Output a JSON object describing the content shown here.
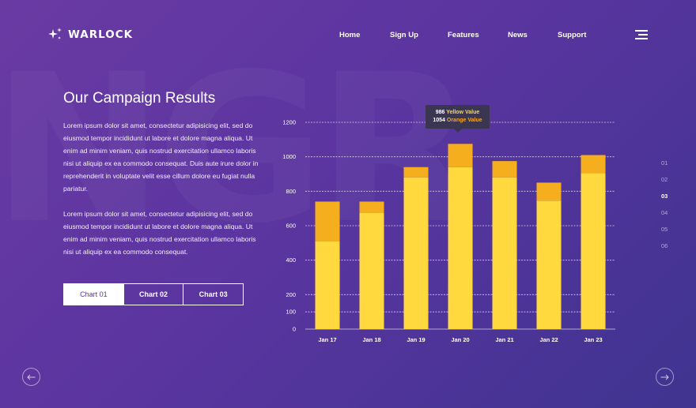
{
  "brand": {
    "name": "WARLOCK",
    "icon": "sparkles-icon"
  },
  "nav": {
    "items": [
      {
        "label": "Home"
      },
      {
        "label": "Sign Up"
      },
      {
        "label": "Features"
      },
      {
        "label": "News"
      },
      {
        "label": "Support"
      }
    ],
    "menu_icon": "hamburger-icon"
  },
  "content": {
    "title": "Our Campaign Results",
    "paragraphs": [
      "Lorem ipsum dolor sit amet, consectetur adipisicing elit, sed do eiusmod tempor incididunt ut labore et dolore magna aliqua. Ut enim ad minim veniam, quis nostrud exercitation ullamco laboris nisi ut aliquip ex ea commodo consequat. Duis aute irure dolor in reprehenderit in voluptate velit esse cillum dolore eu fugiat nulla pariatur.",
      "Lorem ipsum dolor sit amet, consectetur adipisicing elit, sed do eiusmod tempor incididunt ut labore et dolore magna aliqua. Ut enim ad minim veniam, quis nostrud exercitation ullamco laboris nisi ut aliquip ex ea commodo consequat."
    ],
    "tabs": [
      {
        "label": "Chart 01",
        "active": true
      },
      {
        "label": "Chart 02",
        "active": false
      },
      {
        "label": "Chart 03",
        "active": false
      }
    ]
  },
  "tooltip": {
    "yellow_value": "986",
    "yellow_label": "Yellow Value",
    "orange_value": "1054",
    "orange_label": "Orange Value"
  },
  "pager": {
    "items": [
      "01",
      "02",
      "03",
      "04",
      "05",
      "06"
    ],
    "active_index": 2
  },
  "colors": {
    "yellow": "#ffd93d",
    "orange": "#f5ae1e",
    "accent": "#5b35a0"
  },
  "controls": {
    "prev_icon": "arrow-left-icon",
    "next_icon": "arrow-right-icon"
  },
  "chart_data": {
    "type": "bar",
    "stacked": true,
    "categories": [
      "Jan 17",
      "Jan 18",
      "Jan 19",
      "Jan 20",
      "Jan 21",
      "Jan 22",
      "Jan 23"
    ],
    "series": [
      {
        "values": [
          510,
          675,
          880,
          940,
          880,
          745,
          905
        ]
      },
      {
        "values": [
          230,
          65,
          60,
          135,
          95,
          105,
          105
        ]
      }
    ],
    "yticks": [
      0,
      100,
      200,
      400,
      600,
      800,
      1000,
      1200
    ],
    "ylim": [
      0,
      1200
    ],
    "grid": true
  }
}
